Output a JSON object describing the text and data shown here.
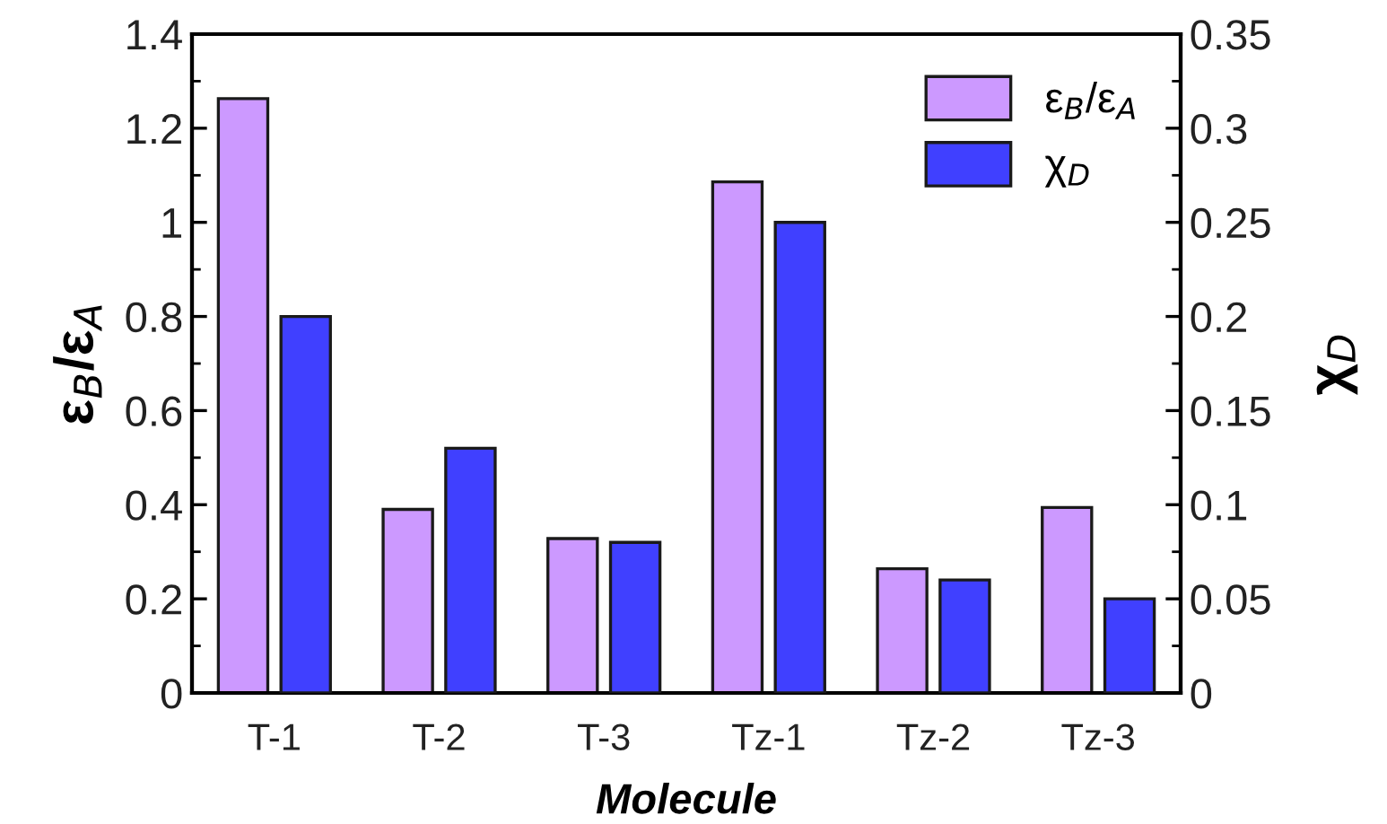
{
  "chart_data": {
    "type": "bar",
    "xlabel": "Molecule",
    "ylabel": "ε$_{B}$/ε$_{A}$",
    "y2label": "χ$_{D}$",
    "categories": [
      "T-1",
      "T-2",
      "T-3",
      "Tz-1",
      "Tz-2",
      "Tz-3"
    ],
    "series": [
      {
        "name": "ε$_{B}$/ε$_{A}$",
        "color": "#cc99ff",
        "values": [
          1.263,
          0.39,
          0.328,
          1.086,
          0.264,
          0.394
        ]
      },
      {
        "name": "χ$_{D}$",
        "color": "#4040ff",
        "axis": "y2",
        "values": [
          0.2,
          0.13,
          0.08,
          0.25,
          0.06,
          0.05
        ]
      }
    ],
    "ylim": [
      0,
      1.4
    ],
    "yticks": [
      0,
      0.2,
      0.4,
      0.6,
      0.8,
      {
        "value": 1,
        "label": "1"
      },
      1.2,
      1.4
    ],
    "y2lim": [
      0,
      0.35
    ],
    "y2ticks": [
      0,
      0.05,
      0.1,
      0.15,
      0.2,
      0.25,
      0.3,
      0.35
    ],
    "legend": "top right",
    "grid": false
  }
}
